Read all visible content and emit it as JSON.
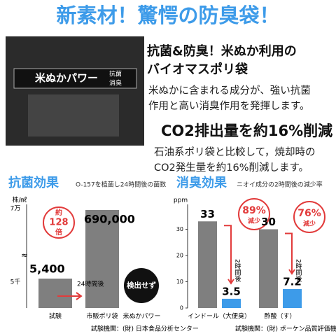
{
  "header": {
    "title": "新素材！驚愕の防臭袋！"
  },
  "product": {
    "labels": [
      "米ぬかパワー",
      "抗菌",
      "消臭"
    ]
  },
  "features": [
    {
      "heading_lines": [
        "抗菌&防臭！米ぬか利用の",
        "バイオマスポリ袋"
      ],
      "body_lines": [
        "米ぬかに含まれる成分が、強い抗菌",
        "作用と高い消臭作用を発揮します。"
      ]
    },
    {
      "heading_lines": [
        "CO2排出量を約16%削減"
      ],
      "body_lines": [
        "石油系ポリ袋と比較して，焼却時の",
        "CO2発生量を約16%削減します。"
      ]
    }
  ],
  "chart_data": [
    {
      "type": "bar",
      "title": "抗菌効果",
      "subtitle": "O-157を植菌し24時間後の菌数",
      "y_unit": "株/㎖",
      "y_tick_labels": [
        "7万",
        "5千"
      ],
      "categories": [
        "試験",
        "市販ポリ袋",
        "米ぬかパワー"
      ],
      "values": [
        5400,
        690000,
        0
      ],
      "value_labels": [
        "5,400",
        "690,000",
        "検出せず"
      ],
      "colors": [
        "#7f7f7f",
        "#7f7f7f",
        "#3d9be9"
      ],
      "ratio_lines": [
        "約",
        "128",
        "倍"
      ],
      "after": "24時間後",
      "source": "試験機関：(財) 日本食品分析センター"
    },
    {
      "type": "grouped_bar",
      "title": "消臭効果",
      "subtitle": "ニオイ成分の2時間後の減少率",
      "y_unit": "ppm",
      "ylim": [
        0,
        40
      ],
      "yticks": [
        0,
        10,
        20,
        30
      ],
      "categories": [
        "インドール（大便臭）",
        "酢酸（す）"
      ],
      "series": [
        {
          "color": "#7f7f7f",
          "values": [
            33,
            30
          ]
        },
        {
          "color": "#3d9be9",
          "values": [
            3.5,
            7.2
          ]
        }
      ],
      "reductions": [
        89,
        76
      ],
      "reduction_labels": [
        "89%",
        "76%"
      ],
      "reduction_word": "減少",
      "after": "2時間後",
      "source": "試験機関：(財) ボーケン品質評価機構"
    }
  ]
}
